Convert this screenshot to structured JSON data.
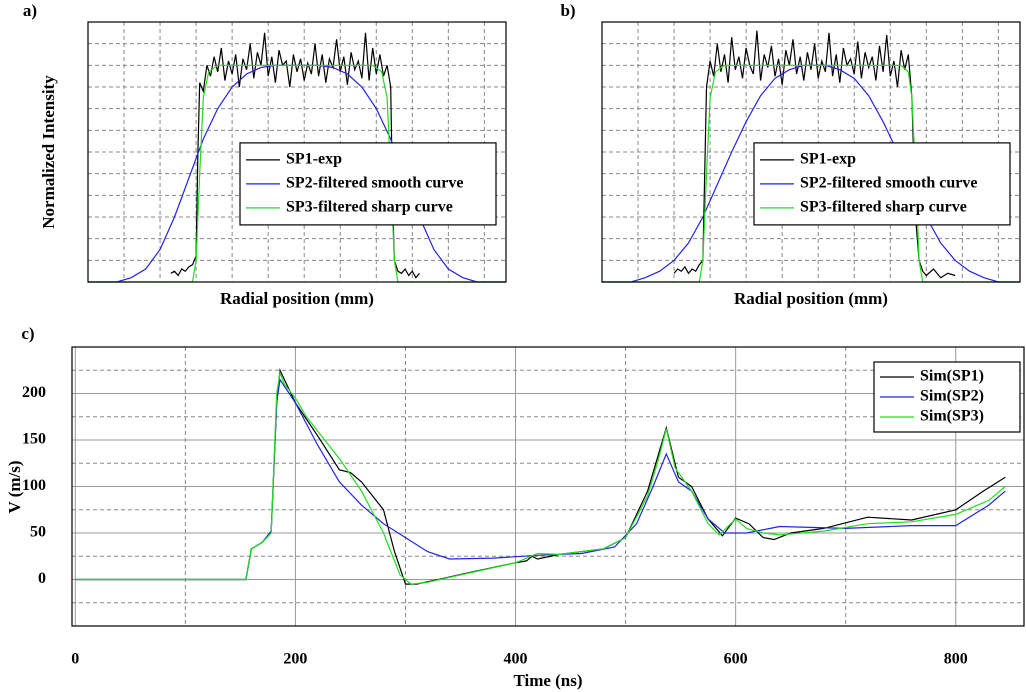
{
  "chart_data": [
    {
      "type": "line",
      "panel_label": "a)",
      "ylabel": "Normalized Intensity",
      "xlabel": "Radial position (mm)",
      "xlim": [
        0,
        11.6
      ],
      "ylim": [
        0,
        1.2
      ],
      "xticks": [
        0,
        1,
        2,
        3,
        4,
        5,
        6,
        7,
        8,
        9,
        10,
        11
      ],
      "yticks": [
        0,
        0.1,
        0.2,
        0.3,
        0.4,
        0.5,
        0.6,
        0.7,
        0.8,
        0.9,
        1.0,
        1.1,
        1.2
      ],
      "grid": true,
      "tick_labels": false,
      "legend": "center right",
      "series": [
        {
          "name": "SP1-exp",
          "color": "#000000",
          "x": [
            2.3,
            2.4,
            2.5,
            2.6,
            2.7,
            2.8,
            2.9,
            3.0,
            3.05,
            3.1,
            3.2,
            3.3,
            3.4,
            3.5,
            3.6,
            3.7,
            3.8,
            3.9,
            4.0,
            4.1,
            4.2,
            4.3,
            4.4,
            4.5,
            4.6,
            4.7,
            4.8,
            4.9,
            5.0,
            5.1,
            5.2,
            5.3,
            5.4,
            5.5,
            5.6,
            5.7,
            5.8,
            5.9,
            6.0,
            6.1,
            6.2,
            6.3,
            6.4,
            6.5,
            6.6,
            6.7,
            6.8,
            6.9,
            7.0,
            7.1,
            7.2,
            7.3,
            7.4,
            7.5,
            7.6,
            7.7,
            7.8,
            7.9,
            8.0,
            8.1,
            8.2,
            8.3,
            8.4,
            8.45,
            8.5,
            8.6,
            8.7,
            8.8,
            8.9,
            9.0,
            9.1,
            9.2
          ],
          "values": [
            0.04,
            0.05,
            0.03,
            0.06,
            0.05,
            0.07,
            0.08,
            0.12,
            0.6,
            0.92,
            0.88,
            1.0,
            0.95,
            1.04,
            0.97,
            1.08,
            0.93,
            1.02,
            0.96,
            1.05,
            0.9,
            1.03,
            0.98,
            1.1,
            0.94,
            1.06,
            1.0,
            1.15,
            0.95,
            1.04,
            0.92,
            1.07,
            1.0,
            1.02,
            0.9,
            1.05,
            0.97,
            1.03,
            0.93,
            1.01,
            0.96,
            1.1,
            0.95,
            1.05,
            0.92,
            1.03,
            0.99,
            1.12,
            0.97,
            1.04,
            0.91,
            1.06,
            0.98,
            1.02,
            0.94,
            1.15,
            0.93,
            1.08,
            0.96,
            1.05,
            0.95,
            1.0,
            0.9,
            0.4,
            0.1,
            0.05,
            0.04,
            0.06,
            0.03,
            0.05,
            0.02,
            0.04
          ]
        },
        {
          "name": "SP2-filtered smooth curve",
          "color": "#2424e0",
          "x": [
            0,
            0.8,
            1.2,
            1.6,
            2.0,
            2.4,
            2.8,
            3.2,
            3.6,
            4.0,
            4.4,
            4.8,
            5.2,
            5.8,
            6.4,
            6.8,
            7.2,
            7.6,
            8.0,
            8.4,
            8.8,
            9.2,
            9.6,
            10.0,
            10.4,
            10.8,
            11.6
          ],
          "values": [
            0,
            0,
            0.02,
            0.06,
            0.15,
            0.3,
            0.48,
            0.66,
            0.8,
            0.9,
            0.96,
            0.99,
            1.0,
            1.0,
            1.0,
            0.99,
            0.96,
            0.9,
            0.8,
            0.66,
            0.48,
            0.3,
            0.15,
            0.06,
            0.02,
            0,
            0
          ]
        },
        {
          "name": "SP3-filtered sharp curve",
          "color": "#22dd22",
          "x": [
            0,
            2.9,
            3.0,
            3.1,
            3.2,
            3.35,
            3.6,
            7.9,
            8.15,
            8.3,
            8.4,
            8.5,
            8.6,
            11.6
          ],
          "values": [
            0,
            0,
            0.1,
            0.5,
            0.85,
            0.97,
            1.0,
            1.0,
            0.97,
            0.85,
            0.5,
            0.1,
            0,
            0
          ]
        }
      ]
    },
    {
      "type": "line",
      "panel_label": "b)",
      "xlabel": "Radial position (mm)",
      "xlim": [
        0,
        11.6
      ],
      "ylim": [
        0,
        1.2
      ],
      "xticks": [
        0,
        1,
        2,
        3,
        4,
        5,
        6,
        7,
        8,
        9,
        10,
        11
      ],
      "yticks": [
        0,
        0.1,
        0.2,
        0.3,
        0.4,
        0.5,
        0.6,
        0.7,
        0.8,
        0.9,
        1.0,
        1.1,
        1.2
      ],
      "grid": true,
      "tick_labels": false,
      "legend": "center right",
      "series": [
        {
          "name": "SP1-exp",
          "color": "#000000",
          "x": [
            2.0,
            2.1,
            2.2,
            2.3,
            2.4,
            2.5,
            2.6,
            2.7,
            2.8,
            2.85,
            2.9,
            3.0,
            3.1,
            3.2,
            3.3,
            3.4,
            3.5,
            3.6,
            3.7,
            3.8,
            3.9,
            4.0,
            4.1,
            4.2,
            4.3,
            4.4,
            4.5,
            4.6,
            4.7,
            4.8,
            4.9,
            5.0,
            5.1,
            5.2,
            5.3,
            5.4,
            5.5,
            5.6,
            5.7,
            5.8,
            5.9,
            6.0,
            6.1,
            6.2,
            6.3,
            6.4,
            6.5,
            6.6,
            6.7,
            6.8,
            6.9,
            7.0,
            7.1,
            7.2,
            7.3,
            7.4,
            7.5,
            7.6,
            7.7,
            7.8,
            7.9,
            8.0,
            8.1,
            8.2,
            8.3,
            8.4,
            8.5,
            8.6,
            8.7,
            8.8,
            8.9,
            9.0,
            9.2,
            9.4,
            9.6,
            9.8
          ],
          "values": [
            0.04,
            0.06,
            0.05,
            0.07,
            0.04,
            0.06,
            0.05,
            0.08,
            0.1,
            0.5,
            0.9,
            1.02,
            0.95,
            1.1,
            0.97,
            1.05,
            0.92,
            1.13,
            0.98,
            1.04,
            0.94,
            1.08,
            1.0,
            0.96,
            1.16,
            0.93,
            1.05,
            0.99,
            1.09,
            0.95,
            1.03,
            0.91,
            1.07,
            1.0,
            1.12,
            0.96,
            1.04,
            0.93,
            1.06,
            0.98,
            1.1,
            0.94,
            1.02,
            0.97,
            1.15,
            0.95,
            1.05,
            0.92,
            1.08,
            1.0,
            1.03,
            0.96,
            1.11,
            0.94,
            1.06,
            0.99,
            1.04,
            0.93,
            1.09,
            0.97,
            1.14,
            0.95,
            1.02,
            0.9,
            1.07,
            0.98,
            1.05,
            0.85,
            0.3,
            0.1,
            0.05,
            0.03,
            0.06,
            0.02,
            0.04,
            0.03
          ]
        },
        {
          "name": "SP2-filtered smooth curve",
          "color": "#2424e0",
          "x": [
            0,
            0.8,
            1.2,
            1.6,
            2.0,
            2.4,
            2.8,
            3.2,
            3.6,
            4.0,
            4.4,
            4.8,
            5.2,
            5.6,
            6.2,
            6.6,
            7.0,
            7.4,
            7.8,
            8.2,
            8.6,
            9.0,
            9.4,
            9.8,
            10.2,
            10.6,
            11.0,
            11.6
          ],
          "values": [
            0,
            0,
            0.02,
            0.05,
            0.1,
            0.18,
            0.3,
            0.45,
            0.6,
            0.74,
            0.86,
            0.94,
            0.98,
            1.0,
            1.0,
            0.98,
            0.94,
            0.86,
            0.74,
            0.6,
            0.45,
            0.3,
            0.18,
            0.1,
            0.05,
            0.02,
            0,
            0
          ]
        },
        {
          "name": "SP3-filtered sharp curve",
          "color": "#22dd22",
          "x": [
            0,
            2.7,
            2.8,
            2.9,
            3.0,
            3.15,
            3.4,
            8.3,
            8.5,
            8.6,
            8.7,
            8.8,
            8.9,
            11.6
          ],
          "values": [
            0,
            0,
            0.1,
            0.5,
            0.85,
            0.97,
            1.0,
            1.0,
            0.97,
            0.85,
            0.5,
            0.1,
            0,
            0
          ]
        }
      ]
    },
    {
      "type": "line",
      "panel_label": "c)",
      "ylabel": "V (m/s)",
      "xlabel": "Time (ns)",
      "xlim": [
        -3,
        862
      ],
      "ylim": [
        -50,
        250
      ],
      "xticks": [
        0,
        200,
        400,
        600,
        800
      ],
      "yticks": [
        0,
        50,
        100,
        150,
        200
      ],
      "xminor": [
        100,
        300,
        500,
        700
      ],
      "yminor": [
        -25,
        25,
        75,
        125,
        175,
        225
      ],
      "grid": true,
      "tick_labels": true,
      "legend": "upper right",
      "series": [
        {
          "name": "Sim(SP1)",
          "color": "#000000",
          "x": [
            0,
            150,
            155,
            160,
            170,
            178,
            183,
            186,
            200,
            220,
            240,
            250,
            260,
            280,
            290,
            300,
            310,
            330,
            360,
            400,
            410,
            415,
            420,
            440,
            480,
            500,
            520,
            537,
            548,
            560,
            575,
            588,
            600,
            612,
            625,
            635,
            650,
            680,
            720,
            760,
            800,
            825,
            845
          ],
          "values": [
            0,
            0,
            0,
            33,
            40,
            52,
            190,
            225,
            190,
            155,
            118,
            115,
            105,
            75,
            30,
            -5,
            -5,
            0,
            8,
            18,
            20,
            25,
            22,
            27,
            33,
            45,
            95,
            163,
            110,
            100,
            65,
            47,
            66,
            60,
            45,
            43,
            50,
            55,
            67,
            64,
            75,
            95,
            110
          ]
        },
        {
          "name": "Sim(SP2)",
          "color": "#2424e0",
          "x": [
            0,
            150,
            155,
            160,
            170,
            178,
            183,
            186,
            200,
            220,
            240,
            260,
            280,
            300,
            320,
            340,
            380,
            420,
            460,
            490,
            510,
            525,
            537,
            548,
            560,
            575,
            590,
            610,
            640,
            700,
            760,
            800,
            830,
            845
          ],
          "values": [
            0,
            0,
            0,
            33,
            40,
            52,
            190,
            215,
            190,
            145,
            105,
            80,
            60,
            45,
            30,
            22,
            23,
            26,
            28,
            35,
            60,
            100,
            135,
            105,
            95,
            65,
            50,
            50,
            57,
            55,
            58,
            58,
            80,
            95
          ]
        },
        {
          "name": "Sim(SP3)",
          "color": "#22dd22",
          "x": [
            0,
            150,
            155,
            160,
            170,
            178,
            183,
            186,
            190,
            200,
            210,
            220,
            240,
            260,
            280,
            295,
            305,
            320,
            350,
            400,
            420,
            440,
            480,
            500,
            520,
            530,
            537,
            545,
            560,
            575,
            585,
            600,
            610,
            625,
            640,
            680,
            720,
            760,
            800,
            830,
            845
          ],
          "values": [
            0,
            0,
            0,
            33,
            40,
            50,
            200,
            222,
            210,
            195,
            175,
            160,
            130,
            95,
            50,
            5,
            -5,
            -3,
            5,
            18,
            28,
            27,
            33,
            45,
            90,
            130,
            162,
            120,
            95,
            60,
            48,
            65,
            55,
            50,
            48,
            52,
            60,
            62,
            70,
            85,
            100
          ]
        }
      ]
    }
  ]
}
